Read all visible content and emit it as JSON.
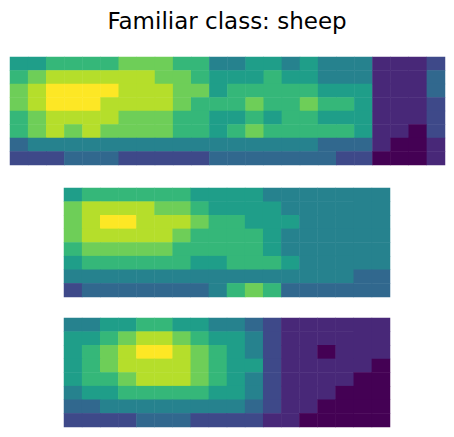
{
  "suptitle": "Familiar class: sheep",
  "chart_data": [
    {
      "type": "heatmap",
      "tick_labels": false,
      "zlim": [
        0,
        9
      ],
      "cells": [
        [
          5,
          5,
          6,
          6,
          6,
          6,
          7,
          7,
          7,
          6,
          6,
          4,
          4,
          5,
          5,
          4,
          5,
          4,
          4,
          4,
          1,
          1,
          1,
          2
        ],
        [
          6,
          7,
          8,
          8,
          8,
          8,
          8,
          8,
          7,
          7,
          6,
          5,
          5,
          5,
          6,
          5,
          5,
          4,
          4,
          4,
          1,
          1,
          1,
          3
        ],
        [
          7,
          8,
          9,
          9,
          9,
          9,
          8,
          8,
          8,
          7,
          7,
          5,
          6,
          6,
          6,
          6,
          6,
          5,
          5,
          5,
          1,
          1,
          1,
          3
        ],
        [
          7,
          8,
          9,
          9,
          9,
          8,
          8,
          8,
          8,
          7,
          6,
          6,
          6,
          7,
          6,
          6,
          7,
          6,
          6,
          5,
          1,
          1,
          1,
          2
        ],
        [
          6,
          7,
          8,
          8,
          8,
          8,
          7,
          7,
          7,
          6,
          6,
          5,
          5,
          6,
          5,
          6,
          6,
          5,
          5,
          5,
          1,
          1,
          1,
          2
        ],
        [
          6,
          7,
          8,
          7,
          8,
          7,
          7,
          7,
          7,
          6,
          6,
          5,
          6,
          7,
          6,
          6,
          6,
          6,
          6,
          5,
          1,
          1,
          0,
          2
        ],
        [
          3,
          4,
          4,
          4,
          4,
          4,
          4,
          4,
          4,
          4,
          4,
          4,
          4,
          4,
          4,
          4,
          4,
          3,
          3,
          3,
          1,
          0,
          0,
          1
        ],
        [
          2,
          2,
          2,
          3,
          3,
          3,
          2,
          2,
          2,
          2,
          2,
          3,
          3,
          3,
          3,
          3,
          3,
          3,
          2,
          2,
          0,
          0,
          0,
          1
        ]
      ]
    },
    {
      "type": "heatmap",
      "tick_labels": false,
      "zlim": [
        0,
        9
      ],
      "cells": [
        [
          5,
          6,
          6,
          6,
          6,
          6,
          6,
          5,
          5,
          5,
          5,
          4,
          4,
          4,
          4,
          4,
          4,
          4
        ],
        [
          7,
          8,
          8,
          8,
          8,
          7,
          7,
          6,
          5,
          5,
          5,
          5,
          4,
          4,
          4,
          4,
          4,
          4
        ],
        [
          7,
          8,
          9,
          9,
          8,
          8,
          8,
          7,
          6,
          6,
          5,
          5,
          5,
          4,
          4,
          4,
          4,
          4
        ],
        [
          7,
          8,
          8,
          8,
          8,
          8,
          7,
          6,
          6,
          6,
          6,
          5,
          4,
          4,
          4,
          4,
          4,
          4
        ],
        [
          6,
          7,
          7,
          7,
          7,
          7,
          6,
          6,
          6,
          6,
          6,
          5,
          4,
          4,
          4,
          4,
          4,
          4
        ],
        [
          5,
          6,
          6,
          6,
          6,
          6,
          6,
          5,
          5,
          6,
          6,
          6,
          5,
          4,
          4,
          4,
          4,
          4
        ],
        [
          4,
          4,
          4,
          4,
          4,
          4,
          4,
          4,
          4,
          4,
          4,
          4,
          4,
          4,
          4,
          4,
          3,
          3
        ],
        [
          2,
          3,
          3,
          3,
          3,
          3,
          3,
          3,
          4,
          6,
          7,
          6,
          3,
          3,
          3,
          3,
          3,
          3
        ]
      ]
    },
    {
      "type": "heatmap",
      "tick_labels": false,
      "zlim": [
        0,
        9
      ],
      "cells": [
        [
          4,
          4,
          5,
          5,
          6,
          6,
          5,
          5,
          4,
          4,
          3,
          2,
          1,
          1,
          1,
          1,
          1,
          1
        ],
        [
          5,
          5,
          6,
          7,
          8,
          8,
          7,
          6,
          5,
          5,
          4,
          2,
          1,
          1,
          1,
          1,
          1,
          1
        ],
        [
          5,
          6,
          7,
          8,
          9,
          9,
          8,
          7,
          6,
          5,
          4,
          2,
          1,
          1,
          0,
          1,
          1,
          1
        ],
        [
          5,
          6,
          7,
          8,
          8,
          8,
          8,
          7,
          6,
          5,
          5,
          2,
          1,
          1,
          1,
          1,
          1,
          0
        ],
        [
          5,
          6,
          6,
          7,
          8,
          8,
          8,
          7,
          6,
          5,
          4,
          2,
          1,
          1,
          1,
          1,
          0,
          0
        ],
        [
          4,
          5,
          5,
          6,
          6,
          6,
          6,
          6,
          5,
          5,
          4,
          2,
          1,
          1,
          1,
          0,
          0,
          0
        ],
        [
          3,
          3,
          4,
          4,
          4,
          4,
          4,
          4,
          4,
          4,
          3,
          2,
          1,
          1,
          0,
          0,
          0,
          0
        ],
        [
          2,
          2,
          2,
          2,
          3,
          3,
          3,
          2,
          2,
          2,
          2,
          1,
          1,
          0,
          0,
          0,
          0,
          0
        ]
      ]
    }
  ]
}
